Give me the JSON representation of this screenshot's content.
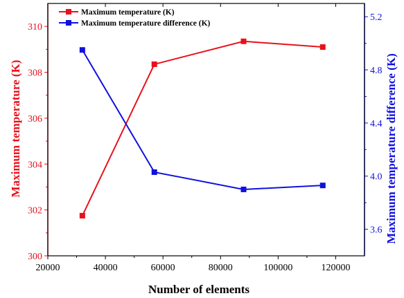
{
  "chart_data": {
    "type": "line",
    "xlabel": "Number of elements",
    "ylabel_left": "Maximum temperature (K)",
    "ylabel_right": "Maximum temperature difference (K)",
    "xlim": [
      20000,
      130000
    ],
    "xticks": [
      20000,
      40000,
      60000,
      80000,
      100000,
      120000
    ],
    "ylim_left": [
      300,
      311
    ],
    "yticks_left": [
      300,
      302,
      304,
      306,
      308,
      310
    ],
    "ylim_right": [
      3.4,
      5.3
    ],
    "yticks_right": [
      "3.6",
      "4.0",
      "4.4",
      "4.8",
      "5.2"
    ],
    "x": [
      32000,
      57000,
      88000,
      115500
    ],
    "series": [
      {
        "name": "Maximum temperature (K)",
        "axis": "left",
        "color": "#e8111b",
        "values": [
          301.75,
          308.35,
          309.35,
          309.1
        ]
      },
      {
        "name": "Maximum temperature difference (K)",
        "axis": "right",
        "color": "#1010e0",
        "values": [
          4.95,
          4.03,
          3.9,
          3.93
        ]
      }
    ],
    "legend_position": "top-left",
    "grid": false
  },
  "colors": {
    "left_axis": "#e8111b",
    "right_axis": "#1010e0",
    "frame": "#000000"
  }
}
